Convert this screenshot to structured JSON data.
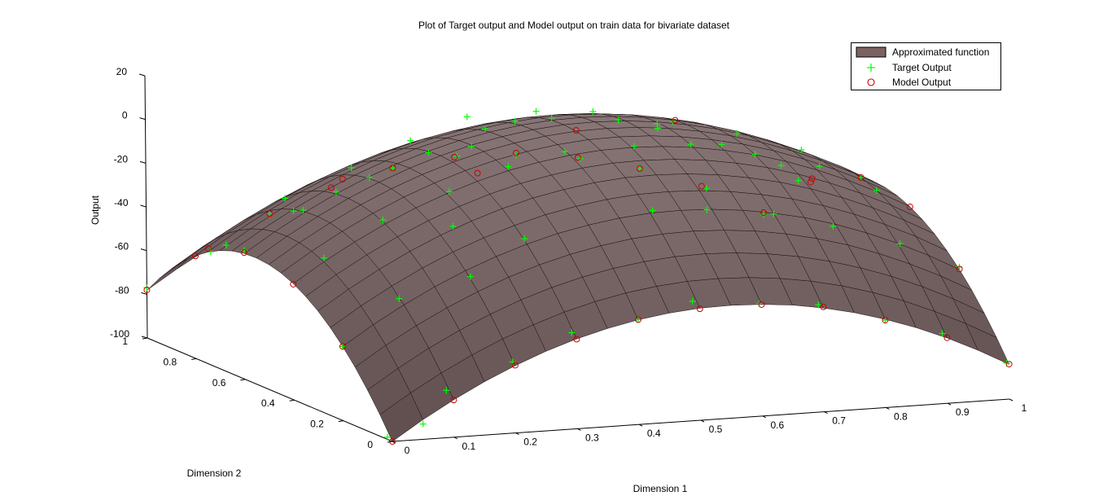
{
  "figure": {
    "title": "Plot of Target output and Model output on train data for bivariate dataset",
    "background": "#ffffff"
  },
  "legend": {
    "items": [
      {
        "label": "Approximated function",
        "symbol": "surface-patch",
        "color": "#7a6262"
      },
      {
        "label": "Target Output",
        "symbol": "plus-marker",
        "color": "#00ff00"
      },
      {
        "label": "Model Output",
        "symbol": "circle-marker",
        "color": "#cc0000"
      }
    ]
  },
  "chart_data": {
    "type": "surface",
    "title": "Plot of Target output and Model output on train data for bivariate dataset",
    "xlabel": "Dimension 1",
    "ylabel": "Dimension 2",
    "zlabel": "Output",
    "xlim": [
      0,
      1
    ],
    "ylim": [
      0,
      1
    ],
    "zlim": [
      -100,
      20
    ],
    "xticks": [
      "0",
      "0.1",
      "0.2",
      "0.3",
      "0.4",
      "0.5",
      "0.6",
      "0.7",
      "0.8",
      "0.9",
      "1"
    ],
    "yticks": [
      "0",
      "0.2",
      "0.4",
      "0.6",
      "0.8",
      "1"
    ],
    "zticks": [
      "-100",
      "-80",
      "-60",
      "-40",
      "-20",
      "0",
      "20"
    ],
    "grid": false,
    "legend_position": "top-right",
    "surface": {
      "name": "Approximated function",
      "color": "#7a6262",
      "grid_x": [
        0,
        0.05,
        0.1,
        0.15,
        0.2,
        0.25,
        0.3,
        0.35,
        0.4,
        0.45,
        0.5,
        0.55,
        0.6,
        0.65,
        0.7,
        0.75,
        0.8,
        0.85,
        0.9,
        0.95,
        1
      ],
      "grid_y": [
        0,
        0.05,
        0.1,
        0.15,
        0.2,
        0.25,
        0.3,
        0.35,
        0.4,
        0.45,
        0.5,
        0.55,
        0.6,
        0.65,
        0.7,
        0.75,
        0.8,
        0.85,
        0.9,
        0.95,
        1
      ],
      "z": [
        [
          -100,
          -91.0,
          -82.9,
          -75.6,
          -69.2,
          -63.6,
          -58.9,
          -55.1,
          -52.1,
          -50.0,
          -48.7,
          -48.4,
          -48.9,
          -50.2,
          -52.5,
          -55.6,
          -59.6,
          -64.4,
          -70.1,
          -76.7,
          -84.1
        ],
        [
          -90.1,
          -81.1,
          -73.0,
          -65.7,
          -59.3,
          -53.8,
          -49.0,
          -45.2,
          -42.2,
          -40.1,
          -38.8,
          -38.5,
          -39.0,
          -40.4,
          -42.6,
          -45.7,
          -49.7,
          -54.5,
          -60.3,
          -66.8,
          -74.3
        ],
        [
          -81.2,
          -72.2,
          -64.0,
          -56.8,
          -50.4,
          -44.8,
          -40.1,
          -36.3,
          -33.3,
          -31.2,
          -29.9,
          -29.5,
          -30.1,
          -31.5,
          -33.7,
          -36.8,
          -40.8,
          -45.6,
          -51.3,
          -57.9,
          -65.4
        ],
        [
          -73.1,
          -64.1,
          -56.0,
          -48.8,
          -42.4,
          -36.8,
          -32.1,
          -28.3,
          -25.3,
          -23.1,
          -21.9,
          -21.5,
          -22.1,
          -23.4,
          -25.7,
          -28.8,
          -32.7,
          -37.6,
          -43.3,
          -49.8,
          -57.3
        ],
        [
          -66.0,
          -57.0,
          -48.9,
          -41.6,
          -35.2,
          -29.7,
          -25.0,
          -21.1,
          -18.2,
          -16.0,
          -14.7,
          -14.4,
          -14.9,
          -16.3,
          -18.6,
          -21.6,
          -25.6,
          -30.5,
          -36.2,
          -42.7,
          -50.2
        ],
        [
          -59.8,
          -50.8,
          -42.7,
          -35.4,
          -29.0,
          -23.5,
          -18.8,
          -14.9,
          -12.0,
          -9.8,
          -8.5,
          -8.2,
          -8.7,
          -10.1,
          -12.4,
          -15.4,
          -19.4,
          -24.3,
          -30.0,
          -36.5,
          -44.0
        ],
        [
          -54.5,
          -45.5,
          -37.4,
          -30.1,
          -23.7,
          -18.2,
          -13.5,
          -9.6,
          -6.7,
          -4.5,
          -3.2,
          -2.9,
          -3.4,
          -4.8,
          -7.1,
          -10.1,
          -14.1,
          -19.0,
          -24.7,
          -31.2,
          -38.7
        ],
        [
          -50.2,
          -41.2,
          -33.1,
          -25.8,
          -19.4,
          -13.9,
          -9.2,
          -5.3,
          -2.4,
          -0.2,
          1.1,
          1.4,
          0.9,
          -0.5,
          -2.8,
          -5.8,
          -9.8,
          -14.7,
          -20.4,
          -26.9,
          -34.4
        ],
        [
          -46.7,
          -37.7,
          -29.6,
          -22.3,
          -15.9,
          -10.4,
          -5.7,
          -1.8,
          1.1,
          3.3,
          4.6,
          4.9,
          4.4,
          3.0,
          0.7,
          -2.3,
          -6.3,
          -11.2,
          -16.9,
          -23.4,
          -30.9
        ],
        [
          -44.2,
          -35.2,
          -27.1,
          -19.8,
          -13.4,
          -7.9,
          -3.2,
          0.7,
          3.6,
          5.8,
          7.1,
          7.4,
          6.9,
          5.5,
          3.2,
          0.2,
          -3.8,
          -8.7,
          -14.4,
          -20.9,
          -28.4
        ],
        [
          -42.7,
          -33.7,
          -25.6,
          -18.3,
          -11.9,
          -6.4,
          -1.7,
          2.2,
          5.1,
          7.3,
          8.6,
          8.9,
          8.4,
          7.0,
          4.7,
          1.7,
          -2.3,
          -7.2,
          -12.9,
          -19.4,
          -26.9
        ],
        [
          -42.1,
          -33.1,
          -25.0,
          -17.7,
          -11.3,
          -5.8,
          -1.1,
          2.8,
          5.7,
          7.9,
          9.2,
          9.5,
          9.0,
          7.6,
          5.3,
          2.3,
          -1.7,
          -6.6,
          -12.3,
          -18.8,
          -26.3
        ],
        [
          -42.4,
          -33.4,
          -25.3,
          -18.0,
          -11.6,
          -6.1,
          -1.4,
          2.5,
          5.4,
          7.6,
          8.9,
          9.2,
          8.7,
          7.3,
          5.0,
          2.0,
          -2.0,
          -6.9,
          -12.6,
          -19.1,
          -26.6
        ],
        [
          -43.6,
          -34.6,
          -26.5,
          -19.2,
          -12.8,
          -7.3,
          -2.6,
          1.3,
          4.2,
          6.4,
          7.7,
          8.0,
          7.5,
          6.1,
          3.8,
          0.8,
          -3.2,
          -8.1,
          -13.8,
          -20.3,
          -27.8
        ],
        [
          -45.8,
          -36.8,
          -28.7,
          -21.4,
          -15.0,
          -9.5,
          -4.8,
          -0.9,
          2.0,
          4.2,
          5.5,
          5.8,
          5.3,
          3.9,
          1.6,
          -1.4,
          -5.4,
          -10.3,
          -16.0,
          -22.5,
          -30.0
        ],
        [
          -48.9,
          -39.9,
          -31.8,
          -24.5,
          -18.1,
          -12.6,
          -7.9,
          -4.0,
          -1.1,
          1.1,
          2.4,
          2.7,
          2.2,
          0.8,
          -1.5,
          -4.5,
          -8.5,
          -13.4,
          -19.1,
          -25.6,
          -33.1
        ],
        [
          -52.9,
          -43.9,
          -35.8,
          -28.5,
          -22.1,
          -16.6,
          -11.9,
          -8.0,
          -5.1,
          -2.9,
          -1.6,
          -1.3,
          -1.8,
          -3.2,
          -5.5,
          -8.5,
          -12.5,
          -17.4,
          -23.1,
          -29.6,
          -37.1
        ],
        [
          -57.8,
          -48.8,
          -40.7,
          -33.4,
          -27.0,
          -21.5,
          -16.8,
          -12.9,
          -10.0,
          -7.8,
          -6.5,
          -6.2,
          -6.7,
          -8.1,
          -10.4,
          -13.4,
          -17.4,
          -22.3,
          -28.0,
          -34.5,
          -42.0
        ],
        [
          -63.7,
          -54.7,
          -46.6,
          -39.3,
          -32.9,
          -27.4,
          -22.7,
          -18.8,
          -15.9,
          -13.7,
          -12.4,
          -12.1,
          -12.6,
          -14.0,
          -16.3,
          -19.3,
          -23.3,
          -28.2,
          -33.9,
          -40.4,
          -47.9
        ],
        [
          -70.5,
          -61.5,
          -53.4,
          -46.1,
          -39.7,
          -34.2,
          -29.5,
          -25.6,
          -22.7,
          -20.5,
          -19.2,
          -18.9,
          -19.4,
          -20.8,
          -23.1,
          -26.1,
          -30.1,
          -35.0,
          -40.7,
          -47.2,
          -54.7
        ],
        [
          -78.2,
          -69.2,
          -61.1,
          -53.8,
          -47.4,
          -41.9,
          -37.2,
          -33.3,
          -30.4,
          -28.2,
          -26.9,
          -26.6,
          -27.1,
          -28.5,
          -30.8,
          -33.8,
          -37.8,
          -42.7,
          -48.4,
          -54.9,
          -62.4
        ]
      ]
    },
    "series": [
      {
        "name": "Target Output",
        "marker": "+",
        "color": "#00ff00",
        "points": [
          [
            0.0,
            0.02,
            -99
          ],
          [
            0.05,
            0.0,
            -93
          ],
          [
            0.1,
            0.03,
            -80
          ],
          [
            0.2,
            0.01,
            -68
          ],
          [
            0.3,
            0.02,
            -57
          ],
          [
            0.4,
            0.0,
            -52
          ],
          [
            0.5,
            0.03,
            -47
          ],
          [
            0.6,
            0.01,
            -49
          ],
          [
            0.7,
            0.02,
            -52
          ],
          [
            0.8,
            0.0,
            -60
          ],
          [
            0.9,
            0.02,
            -69
          ],
          [
            1.0,
            0.01,
            -84
          ],
          [
            0.0,
            0.2,
            -66
          ],
          [
            0.1,
            0.22,
            -47
          ],
          [
            0.2,
            0.18,
            -37
          ],
          [
            0.3,
            0.21,
            -23
          ],
          [
            0.5,
            0.19,
            -13
          ],
          [
            0.6,
            0.22,
            -16
          ],
          [
            0.7,
            0.2,
            -19
          ],
          [
            0.8,
            0.21,
            -27
          ],
          [
            0.9,
            0.19,
            -36
          ],
          [
            1.0,
            0.2,
            -49
          ],
          [
            0.05,
            0.4,
            -36
          ],
          [
            0.15,
            0.41,
            -21
          ],
          [
            0.25,
            0.39,
            -9
          ],
          [
            0.35,
            0.4,
            0
          ],
          [
            0.45,
            0.42,
            4
          ],
          [
            0.55,
            0.39,
            6
          ],
          [
            0.65,
            0.41,
            4
          ],
          [
            0.75,
            0.4,
            -2
          ],
          [
            0.85,
            0.39,
            -9
          ],
          [
            0.95,
            0.41,
            -23
          ],
          [
            0.0,
            0.6,
            -41
          ],
          [
            0.1,
            0.61,
            -25
          ],
          [
            0.2,
            0.59,
            -11
          ],
          [
            0.3,
            0.6,
            -2
          ],
          [
            0.4,
            0.62,
            6
          ],
          [
            0.5,
            0.6,
            10
          ],
          [
            0.6,
            0.58,
            8
          ],
          [
            0.7,
            0.61,
            4
          ],
          [
            0.8,
            0.6,
            -3
          ],
          [
            0.9,
            0.59,
            -12
          ],
          [
            1.0,
            0.6,
            -27
          ],
          [
            0.05,
            0.8,
            -49
          ],
          [
            0.15,
            0.81,
            -30
          ],
          [
            0.25,
            0.79,
            -17
          ],
          [
            0.35,
            0.8,
            -7
          ],
          [
            0.45,
            0.82,
            1
          ],
          [
            0.55,
            0.79,
            3
          ],
          [
            0.65,
            0.81,
            0
          ],
          [
            0.75,
            0.8,
            -7
          ],
          [
            0.85,
            0.79,
            -18
          ],
          [
            0.95,
            0.8,
            -30
          ],
          [
            0.0,
            1.0,
            -77
          ],
          [
            0.1,
            0.99,
            -62
          ],
          [
            0.2,
            1.0,
            -47
          ],
          [
            0.3,
            0.98,
            -38
          ],
          [
            0.4,
            1.0,
            -30
          ],
          [
            0.5,
            0.99,
            -26
          ],
          [
            0.6,
            1.0,
            -28
          ],
          [
            0.7,
            0.99,
            -31
          ],
          [
            0.8,
            1.0,
            -38
          ],
          [
            0.9,
            0.98,
            -48
          ],
          [
            1.0,
            1.0,
            -63
          ],
          [
            0.33,
            0.5,
            5
          ],
          [
            0.62,
            0.47,
            9
          ],
          [
            0.48,
            0.7,
            4
          ],
          [
            0.22,
            0.3,
            -20
          ],
          [
            0.78,
            0.3,
            -10
          ],
          [
            0.12,
            0.7,
            -30
          ]
        ]
      },
      {
        "name": "Model Output",
        "marker": "o",
        "color": "#cc0000",
        "points": [
          [
            0.0,
            0.0,
            -100
          ],
          [
            0.1,
            0.0,
            -83
          ],
          [
            0.2,
            0.0,
            -69
          ],
          [
            0.3,
            0.0,
            -59
          ],
          [
            0.4,
            0.0,
            -52
          ],
          [
            0.5,
            0.0,
            -49
          ],
          [
            0.6,
            0.0,
            -49
          ],
          [
            0.7,
            0.0,
            -52
          ],
          [
            0.8,
            0.0,
            -60
          ],
          [
            0.9,
            0.0,
            -70
          ],
          [
            1.0,
            0.0,
            -84
          ],
          [
            1.0,
            0.2,
            -50
          ],
          [
            1.0,
            0.4,
            -31
          ],
          [
            1.0,
            0.6,
            -27
          ],
          [
            1.0,
            0.8,
            -37
          ],
          [
            1.0,
            1.0,
            -62
          ],
          [
            0.0,
            1.0,
            -78
          ],
          [
            0.1,
            1.0,
            -61
          ],
          [
            0.2,
            1.0,
            -47
          ],
          [
            0.3,
            1.0,
            -37
          ],
          [
            0.4,
            1.0,
            -30
          ],
          [
            0.5,
            1.0,
            -27
          ],
          [
            0.6,
            1.0,
            -27
          ],
          [
            0.7,
            1.0,
            -31
          ],
          [
            0.8,
            1.0,
            -38
          ],
          [
            0.9,
            1.0,
            -48
          ],
          [
            0.0,
            0.2,
            -66
          ],
          [
            0.0,
            0.4,
            -47
          ],
          [
            0.0,
            0.6,
            -42
          ],
          [
            0.0,
            0.8,
            -53
          ],
          [
            0.5,
            0.5,
            9
          ],
          [
            0.3,
            0.4,
            -2
          ],
          [
            0.7,
            0.6,
            5
          ],
          [
            0.2,
            0.7,
            -17
          ],
          [
            0.8,
            0.3,
            -11
          ]
        ]
      }
    ]
  }
}
